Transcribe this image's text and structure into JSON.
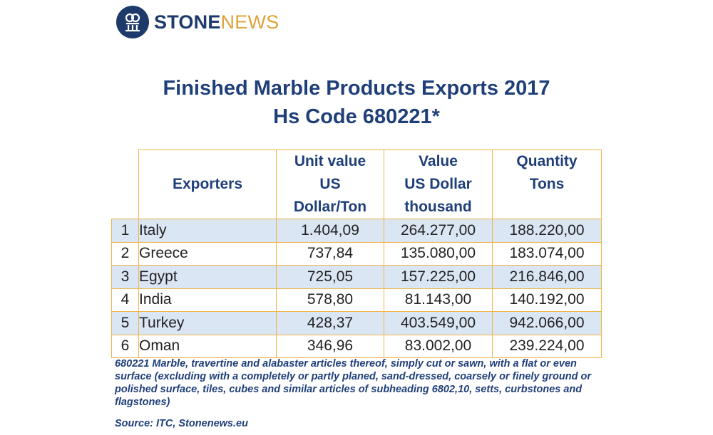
{
  "logo": {
    "brand_a": "STONE",
    "brand_b": "NEWS",
    "colors": {
      "navy": "#1d3a6b",
      "gold": "#e0a23a"
    },
    "icon": "stonenews-logo-icon"
  },
  "title_line1": "Finished Marble Products Exports 2017",
  "title_line2": "Hs Code 680221*",
  "table": {
    "headers": {
      "exporters": "Exporters",
      "unit_value": [
        "Unit value",
        "US",
        "Dollar/Ton"
      ],
      "value": [
        "Value",
        "US Dollar",
        "thousand"
      ],
      "quantity": [
        "Quantity",
        "Tons"
      ]
    },
    "rows": [
      {
        "rank": "1",
        "exporter": "Italy",
        "unit_value": "1.404,09",
        "value": "264.277,00",
        "quantity": "188.220,00"
      },
      {
        "rank": "2",
        "exporter": "Greece",
        "unit_value": "737,84",
        "value": "135.080,00",
        "quantity": "183.074,00"
      },
      {
        "rank": "3",
        "exporter": "Egypt",
        "unit_value": "725,05",
        "value": "157.225,00",
        "quantity": "216.846,00"
      },
      {
        "rank": "4",
        "exporter": "India",
        "unit_value": "578,80",
        "value": "81.143,00",
        "quantity": "140.192,00"
      },
      {
        "rank": "5",
        "exporter": "Turkey",
        "unit_value": "428,37",
        "value": "403.549,00",
        "quantity": "942.066,00"
      },
      {
        "rank": "6",
        "exporter": "Oman",
        "unit_value": "346,96",
        "value": "83.002,00",
        "quantity": "239.224,00"
      }
    ],
    "colors": {
      "border": "#f0b445",
      "shade": "#dbe6f4",
      "header_text": "#1f3f7a"
    }
  },
  "footnote": "680221 Marble, travertine and alabaster articles thereof, simply cut or sawn, with a flat or even surface (excluding with a completely or partly planed, sand-dressed, coarsely or finely ground or polished surface, tiles, cubes and similar articles of subheading 6802,10, setts, curbstones and flagstones)",
  "source": "Source: ITC, Stonenews.eu"
}
